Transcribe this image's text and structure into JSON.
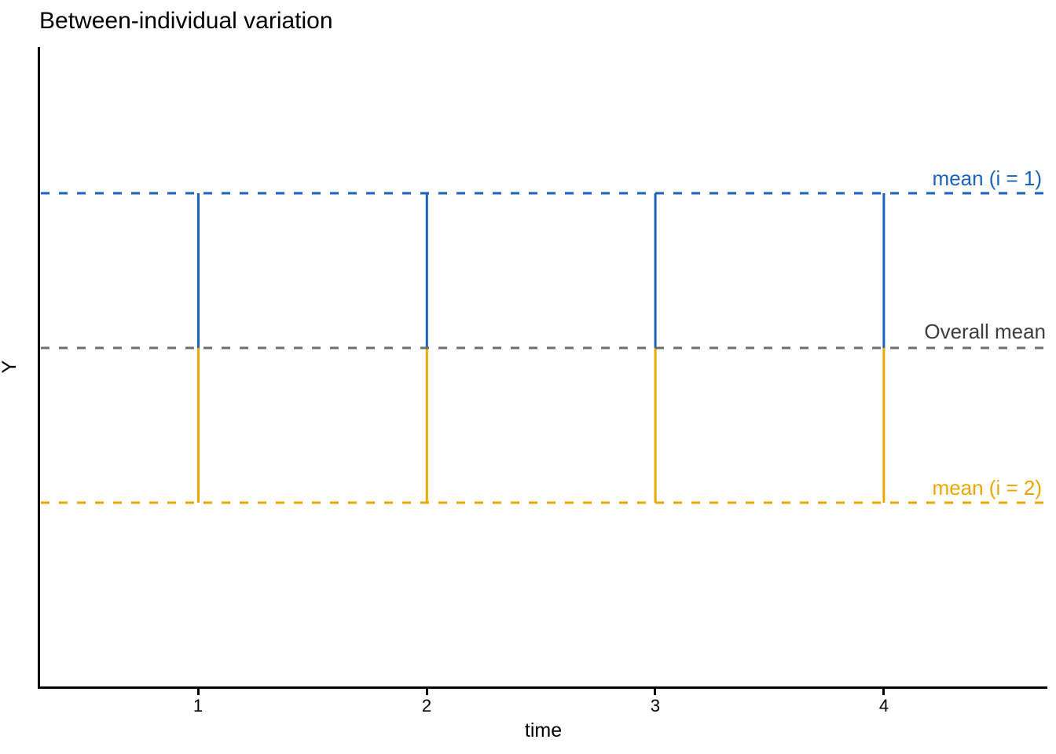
{
  "title": "Between-individual variation",
  "axis": {
    "x_label": "time",
    "y_label": "Y",
    "x_ticks": [
      "1",
      "2",
      "3",
      "4"
    ]
  },
  "annotations": {
    "mean_i1": "mean (i = 1)",
    "overall": "Overall mean",
    "mean_i2": "mean (i = 2)"
  },
  "colors": {
    "individual_1": "#1c63b8",
    "individual_2": "#e9a800",
    "overall_line": "#6e6e6e",
    "overall_label": "#3d3d3d",
    "axis": "#000000"
  },
  "chart_data": {
    "type": "line",
    "title": "Between-individual variation",
    "xlabel": "time",
    "ylabel": "Y",
    "x": [
      1,
      2,
      3,
      4
    ],
    "x_tick_labels": [
      "1",
      "2",
      "3",
      "4"
    ],
    "y_tick_labels": [],
    "grid": false,
    "legend_position": "none",
    "series": [
      {
        "name": "mean (i = 1)",
        "level": 1,
        "style": "dashed",
        "color": "#1c63b8",
        "label_text": "mean (i = 1)"
      },
      {
        "name": "Overall mean",
        "level": 0,
        "style": "dashed",
        "color": "#6e6e6e",
        "label_text": "Overall mean"
      },
      {
        "name": "mean (i = 2)",
        "level": -1,
        "style": "dashed",
        "color": "#e9a800",
        "label_text": "mean (i = 2)"
      }
    ],
    "deviation_segments": [
      {
        "series": "mean (i = 1)",
        "x": [
          1,
          2,
          3,
          4
        ],
        "from_level": 0,
        "to_level": 1,
        "color": "#1c63b8",
        "style": "solid"
      },
      {
        "series": "mean (i = 2)",
        "x": [
          1,
          2,
          3,
          4
        ],
        "from_level": 0,
        "to_level": -1,
        "color": "#e9a800",
        "style": "solid"
      }
    ]
  }
}
